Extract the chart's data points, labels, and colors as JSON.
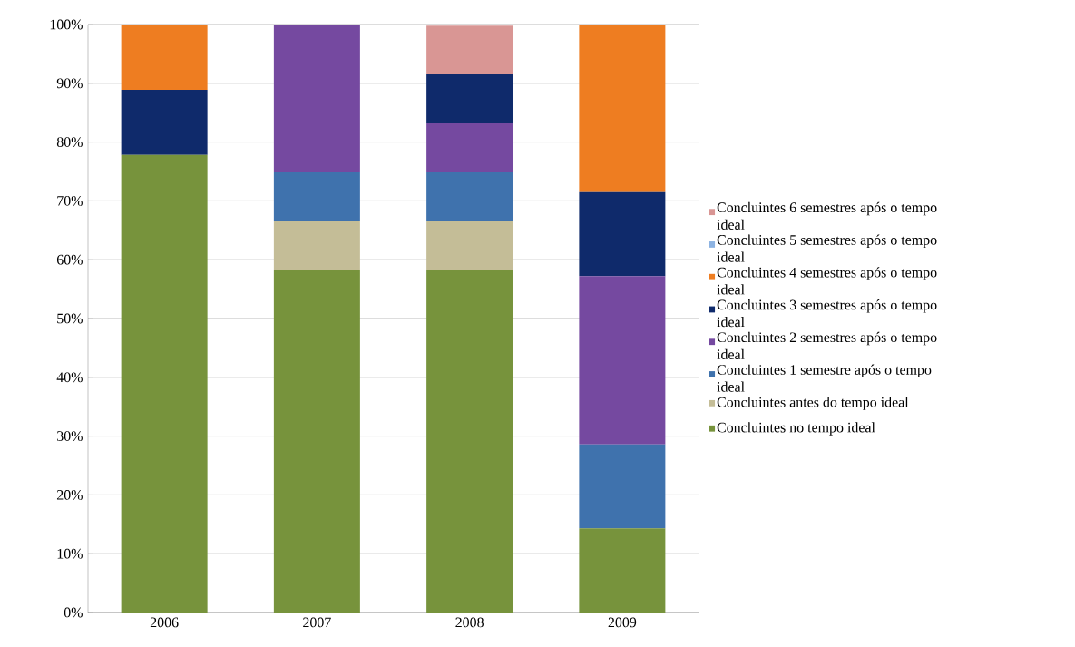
{
  "chart_data": {
    "type": "bar",
    "stacked": true,
    "categories": [
      "2006",
      "2007",
      "2008",
      "2009"
    ],
    "series": [
      {
        "name": "Concluintes no tempo ideal",
        "color": "#77933c",
        "values": [
          77.8,
          58.3,
          58.3,
          14.3
        ]
      },
      {
        "name": "Concluintes antes do tempo ideal",
        "color": "#c4bd97",
        "values": [
          0,
          8.3,
          8.3,
          0
        ]
      },
      {
        "name": "Concluintes 1 semestre após o tempo ideal",
        "color": "#3f72ad",
        "values": [
          0,
          8.3,
          8.3,
          14.3
        ]
      },
      {
        "name": "Concluintes 2 semestres após o tempo ideal",
        "color": "#7549a0",
        "values": [
          0,
          25.0,
          8.3,
          28.6
        ]
      },
      {
        "name": "Concluintes 3 semestres após o tempo ideal",
        "color": "#0f2a6b",
        "values": [
          11.1,
          0,
          8.3,
          14.3
        ]
      },
      {
        "name": "Concluintes 4 semestres após o tempo ideal",
        "color": "#ee7d21",
        "values": [
          11.1,
          0,
          0,
          28.6
        ]
      },
      {
        "name": "Concluintes 5 semestres após o tempo ideal",
        "color": "#8db3e2",
        "values": [
          0,
          0,
          0,
          0
        ]
      },
      {
        "name": "Concluintes 6 semestres após o tempo ideal",
        "color": "#d99694",
        "values": [
          0,
          0,
          8.3,
          0
        ]
      }
    ],
    "ylim": [
      0,
      100
    ],
    "yticks": [
      {
        "value": 0,
        "label": "0%"
      },
      {
        "value": 10,
        "label": "10%"
      },
      {
        "value": 20,
        "label": "20%"
      },
      {
        "value": 30,
        "label": "30%"
      },
      {
        "value": 40,
        "label": "40%"
      },
      {
        "value": 50,
        "label": "50%"
      },
      {
        "value": 60,
        "label": "60%"
      },
      {
        "value": 70,
        "label": "70%"
      },
      {
        "value": 80,
        "label": "80%"
      },
      {
        "value": 90,
        "label": "90%"
      },
      {
        "value": 100,
        "label": "100%"
      }
    ],
    "grid": "y",
    "legend": "right"
  }
}
